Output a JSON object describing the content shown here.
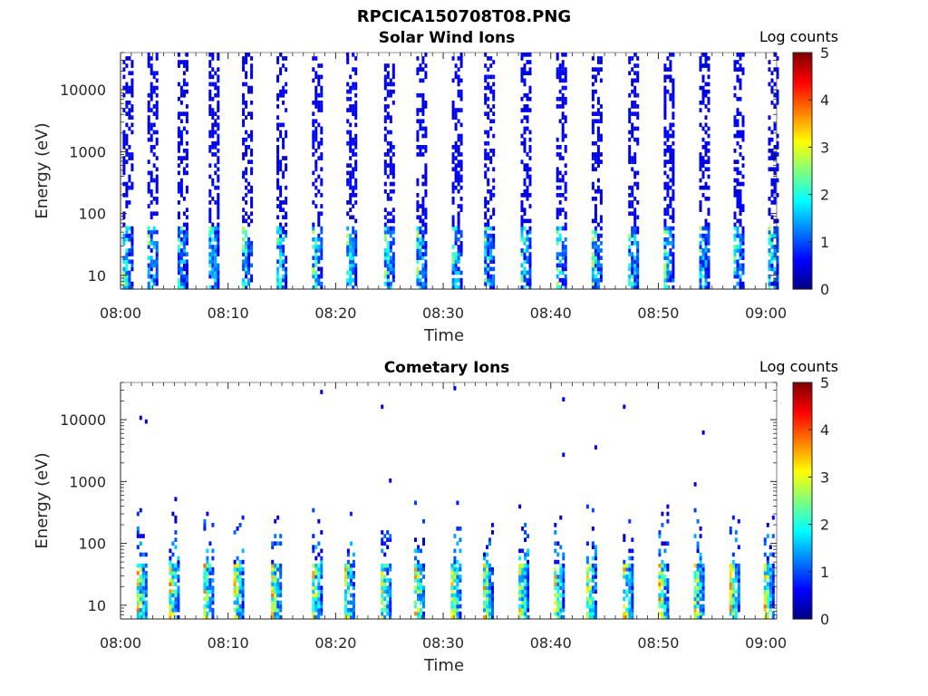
{
  "figure_title": "RPCICA150708T08.PNG",
  "chart_data": [
    {
      "type": "heatmap",
      "title": "Solar Wind Ions",
      "xlabel": "Time",
      "ylabel": "Energy (eV)",
      "x_ticks": [
        "08:00",
        "08:10",
        "08:20",
        "08:30",
        "08:40",
        "08:50",
        "09:00"
      ],
      "xlim": [
        "08:00",
        "09:01"
      ],
      "y_scale": "log",
      "y_ticks": [
        "10",
        "100",
        "1000",
        "10000"
      ],
      "ylim": [
        6,
        40000
      ],
      "colorbar": {
        "label": "Log counts",
        "range": [
          0,
          5
        ],
        "ticks": [
          "0",
          "1",
          "2",
          "3",
          "4",
          "5"
        ],
        "colormap": "jet"
      },
      "sweep_start_minutes": [
        0.2,
        2.5,
        5.3,
        8.2,
        11.3,
        14.5,
        17.8,
        21.0,
        24.5,
        27.5,
        30.8,
        33.8,
        37.2,
        40.5,
        43.8,
        47.2,
        50.5,
        53.8,
        57.0,
        60.2
      ],
      "low_energy_max_log_counts": 2.8,
      "high_energy_log_counts": 0.6
    },
    {
      "type": "heatmap",
      "title": "Cometary Ions",
      "xlabel": "Time",
      "ylabel": "Energy (eV)",
      "x_ticks": [
        "08:00",
        "08:10",
        "08:20",
        "08:30",
        "08:40",
        "08:50",
        "09:00"
      ],
      "xlim": [
        "08:00",
        "09:01"
      ],
      "y_scale": "log",
      "y_ticks": [
        "10",
        "100",
        "1000",
        "10000"
      ],
      "ylim": [
        6,
        40000
      ],
      "colorbar": {
        "label": "Log counts",
        "range": [
          0,
          5
        ],
        "ticks": [
          "0",
          "1",
          "2",
          "3",
          "4",
          "5"
        ],
        "colormap": "jet"
      },
      "sweep_start_minutes": [
        1.5,
        4.5,
        7.7,
        10.5,
        14.0,
        17.8,
        20.8,
        24.2,
        27.3,
        30.7,
        33.7,
        37.0,
        40.3,
        43.3,
        46.7,
        50.0,
        53.3,
        56.6,
        59.8
      ],
      "low_energy_max_log_counts": 3.9,
      "high_energy_log_counts": 0.5
    }
  ]
}
